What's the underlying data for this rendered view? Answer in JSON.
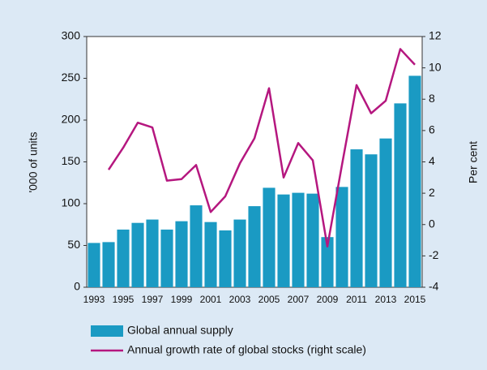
{
  "chart_data": {
    "type": "bar_line",
    "ylabel": "'000 of units",
    "y2label": "Per cent",
    "categories": [
      "1993",
      null,
      "1995",
      null,
      "1997",
      null,
      "1999",
      null,
      "2001",
      null,
      "2003",
      null,
      "2005",
      null,
      "2007",
      null,
      "2009",
      null,
      "2011",
      null,
      "2013",
      null,
      "2015"
    ],
    "series": [
      {
        "name": "Global annual supply",
        "color": "#1a9ac3",
        "type": "bar",
        "values": [
          53,
          54,
          69,
          77,
          81,
          69,
          79,
          98,
          78,
          68,
          81,
          97,
          119,
          111,
          113,
          112,
          60,
          120,
          165,
          159,
          178,
          220,
          253
        ]
      },
      {
        "name": "Annual growth rate of global stocks (right scale)",
        "color": "#b5177f",
        "type": "line",
        "axis": "y2",
        "values": [
          null,
          3.5,
          4.9,
          6.5,
          6.2,
          2.8,
          2.9,
          3.8,
          0.8,
          1.8,
          3.9,
          5.5,
          8.7,
          3.0,
          5.2,
          4.1,
          -1.4,
          3.8,
          8.9,
          7.1,
          7.9,
          11.2,
          10.2
        ]
      }
    ],
    "ylim": [
      0,
      300
    ],
    "yticks": [
      0,
      50,
      100,
      150,
      200,
      250,
      300
    ],
    "y2lim": [
      -4,
      12
    ],
    "y2ticks": [
      -4,
      -2,
      0,
      2,
      4,
      6,
      8,
      10,
      12
    ],
    "grid": false
  }
}
